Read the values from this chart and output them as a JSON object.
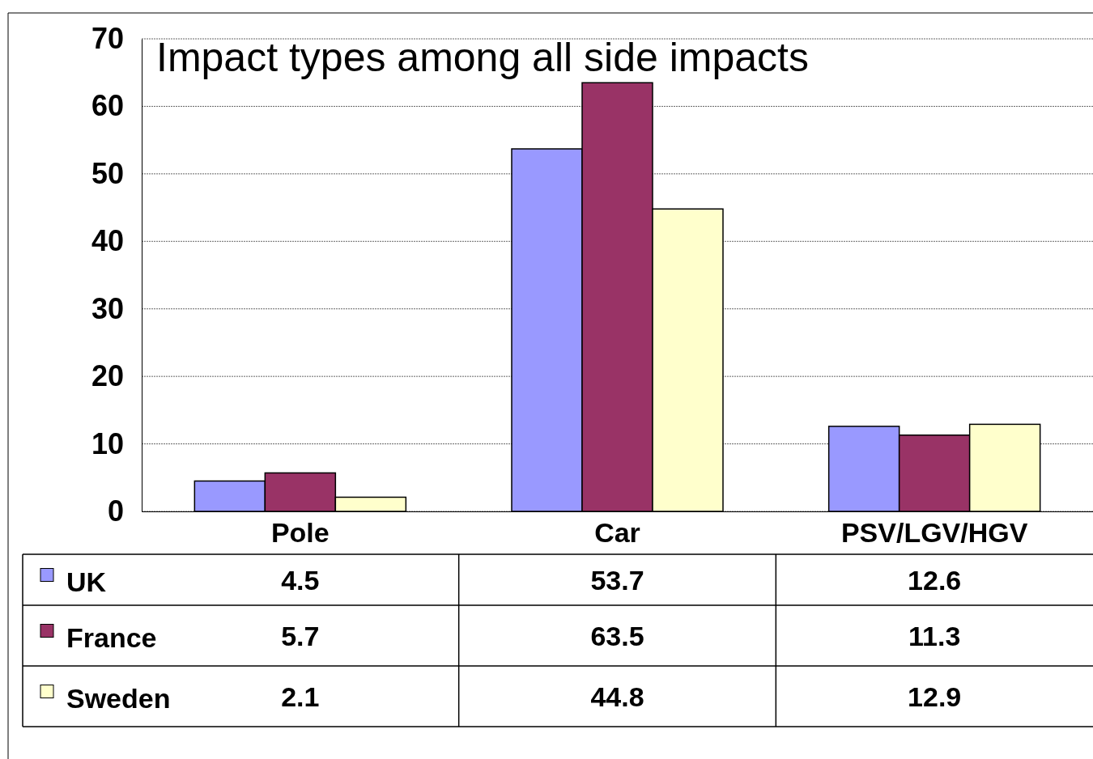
{
  "chart_data": {
    "type": "bar",
    "title": "Impact types among all side impacts",
    "categories": [
      "Pole",
      "Car",
      "PSV/LGV/HGV"
    ],
    "series": [
      {
        "name": "UK",
        "color": "#9999ff",
        "values": [
          4.5,
          53.7,
          12.6
        ]
      },
      {
        "name": "France",
        "color": "#993366",
        "values": [
          5.7,
          63.5,
          11.3
        ]
      },
      {
        "name": "Sweden",
        "color": "#ffffcc",
        "values": [
          2.1,
          44.8,
          12.9
        ]
      }
    ],
    "ylim": [
      0,
      70
    ],
    "yticks": [
      0,
      10,
      20,
      30,
      40,
      50,
      60,
      70
    ],
    "grid": "y",
    "legend": "bottom",
    "data_labels": true
  }
}
